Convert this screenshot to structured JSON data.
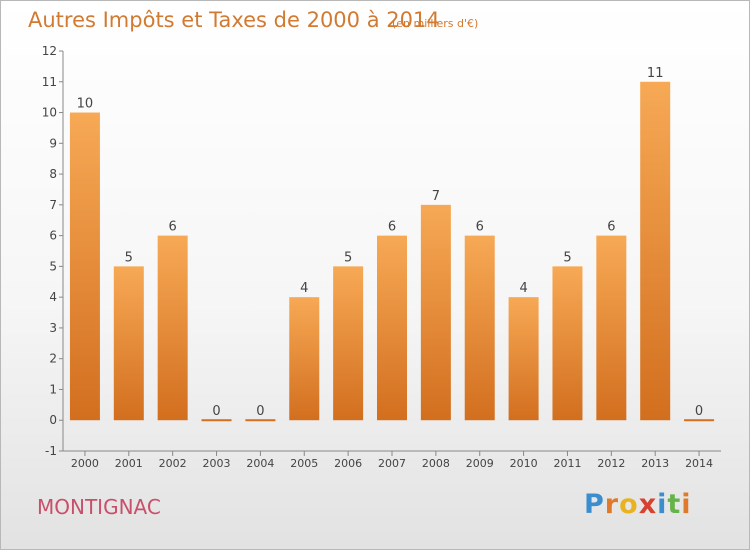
{
  "header": {
    "title": "Autres Impôts et Taxes de 2000 à 2014",
    "unit": "(en milliers d'€)"
  },
  "footer": {
    "city": "MONTIGNAC",
    "brand": "Proxiti",
    "brand_letters": [
      "P",
      "r",
      "o",
      "x",
      "i",
      "t",
      "i"
    ],
    "brand_colors": [
      "#3a8ed0",
      "#e07a2a",
      "#e9b320",
      "#d8402f",
      "#3a8ed0",
      "#66b34a",
      "#e07a2a"
    ]
  },
  "colors": {
    "bar_top": "#f7a955",
    "bar_bottom": "#d26f1f",
    "text": "#444444",
    "axis": "#888888"
  },
  "chart_data": {
    "type": "bar",
    "categories": [
      "2000",
      "2001",
      "2002",
      "2003",
      "2004",
      "2005",
      "2006",
      "2007",
      "2008",
      "2009",
      "2010",
      "2011",
      "2012",
      "2013",
      "2014"
    ],
    "values": [
      10,
      5,
      6,
      0,
      0,
      4,
      5,
      6,
      7,
      6,
      4,
      5,
      6,
      11,
      0
    ],
    "yticks": [
      "-1",
      "0",
      "1",
      "2",
      "3",
      "4",
      "5",
      "6",
      "7",
      "8",
      "9",
      "10",
      "11",
      "12"
    ],
    "ylim": [
      -1,
      12
    ],
    "grid": false
  }
}
